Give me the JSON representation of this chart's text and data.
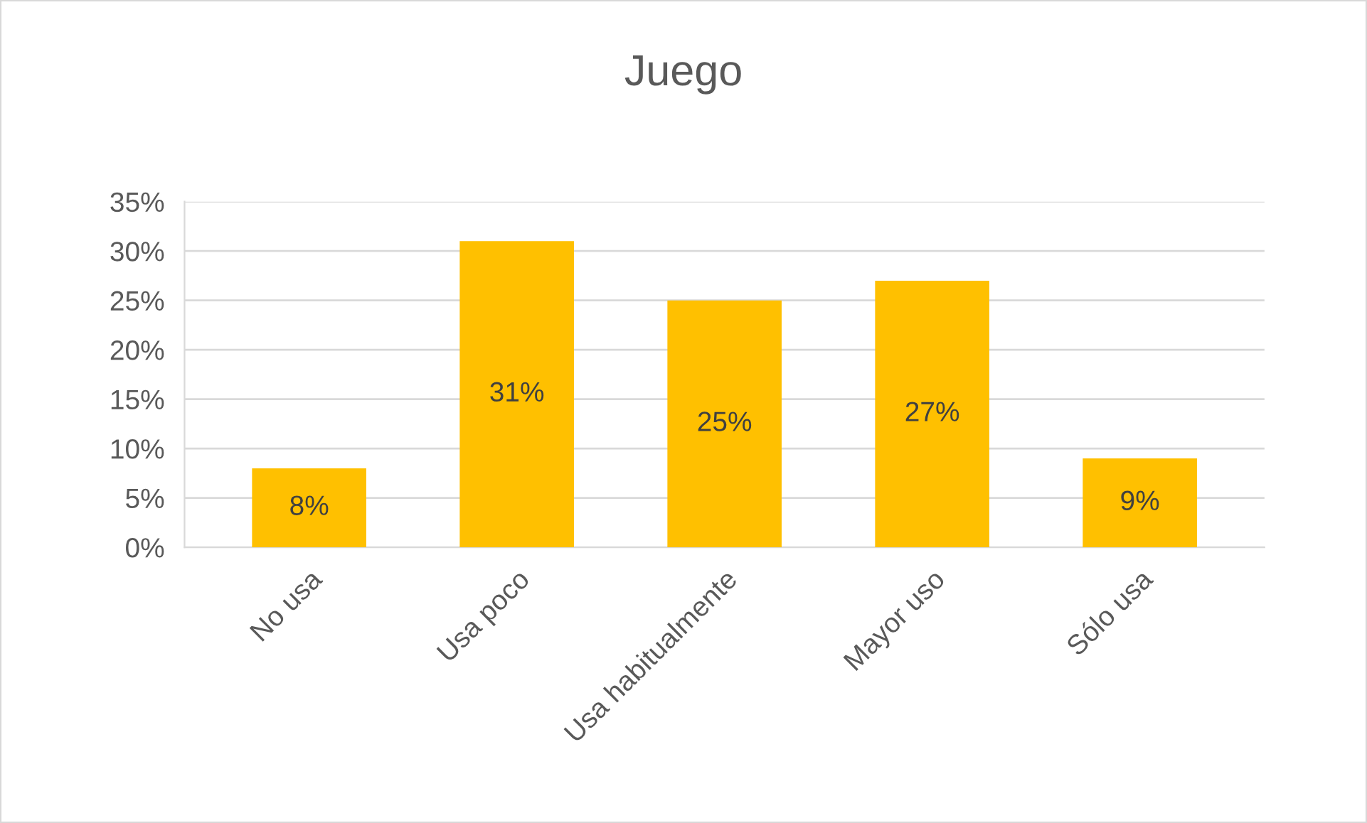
{
  "chart_data": {
    "type": "bar",
    "title": "Juego",
    "categories": [
      "No usa",
      "Usa poco",
      "Usa habitualmente",
      "Mayor uso",
      "Sólo usa"
    ],
    "values": [
      8,
      31,
      25,
      27,
      9
    ],
    "value_labels": [
      "8%",
      "31%",
      "25%",
      "27%",
      "9%"
    ],
    "color": "#ffc000",
    "ylim": [
      0,
      35
    ],
    "yticks": [
      {
        "value": 0,
        "label": "0%"
      },
      {
        "value": 5,
        "label": "5%"
      },
      {
        "value": 10,
        "label": "10%"
      },
      {
        "value": 15,
        "label": "15%"
      },
      {
        "value": 20,
        "label": "20%"
      },
      {
        "value": 25,
        "label": "25%"
      },
      {
        "value": 30,
        "label": "30%"
      },
      {
        "value": 35,
        "label": "35%"
      }
    ],
    "grid": "y",
    "legend": false
  }
}
